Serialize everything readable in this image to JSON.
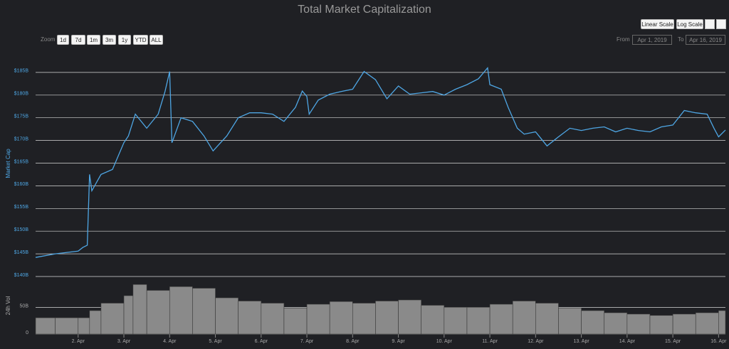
{
  "title": "Total Market Capitalization",
  "controls": {
    "zoom_label": "Zoom",
    "zoom_buttons": [
      "1d",
      "7d",
      "1m",
      "3m",
      "1y",
      "YTD",
      "ALL"
    ],
    "scale_buttons": [
      "Linear Scale",
      "Log Scale"
    ],
    "from_label": "From",
    "from_value": "Apr 1, 2019",
    "to_label": "To",
    "to_value": "Apr 16, 2019"
  },
  "chart_data": [
    {
      "type": "line",
      "ylabel": "Market Cap",
      "color": "#4ea6e4",
      "grid": true,
      "x": [
        1.07,
        1.5,
        2.0,
        2.1,
        2.2,
        2.25,
        2.3,
        2.5,
        2.75,
        3.0,
        3.1,
        3.25,
        3.5,
        3.75,
        3.9,
        4.0,
        4.05,
        4.25,
        4.5,
        4.75,
        4.95,
        5.25,
        5.5,
        5.75,
        6.0,
        6.25,
        6.5,
        6.75,
        6.9,
        7.0,
        7.05,
        7.25,
        7.5,
        7.75,
        8.0,
        8.25,
        8.5,
        8.75,
        9.0,
        9.25,
        9.5,
        9.75,
        10.0,
        10.25,
        10.5,
        10.75,
        10.95,
        11.0,
        11.25,
        11.4,
        11.6,
        11.75,
        12.0,
        12.25,
        12.5,
        12.75,
        13.0,
        13.25,
        13.5,
        13.75,
        14.0,
        14.25,
        14.5,
        14.75,
        15.0,
        15.25,
        15.5,
        15.75,
        15.9,
        16.0,
        16.15
      ],
      "values": [
        144.2,
        145,
        145.6,
        146.4,
        146.9,
        162.5,
        158.9,
        162.5,
        163.6,
        169.5,
        171,
        175.8,
        172.7,
        175.8,
        180.8,
        185.2,
        169.5,
        175,
        174.2,
        171,
        167.7,
        171,
        175,
        176.1,
        176.1,
        175.8,
        174.2,
        177.3,
        180.9,
        179.7,
        175.8,
        178.9,
        180.2,
        180.8,
        181.3,
        185.2,
        183.4,
        179.2,
        182,
        180.2,
        180.5,
        180.8,
        180,
        181.3,
        182.3,
        183.6,
        186,
        182.3,
        181.3,
        177.3,
        172.7,
        171.4,
        171.9,
        168.8,
        170.8,
        172.7,
        172.2,
        172.7,
        173,
        171.9,
        172.7,
        172.2,
        171.9,
        173,
        173.4,
        176.6,
        176.1,
        175.8,
        172.7,
        170.8,
        172.3
      ],
      "xlim": [
        1.07,
        16.15
      ],
      "xticks": [
        {
          "value": 2,
          "label": "2. Apr"
        },
        {
          "value": 3,
          "label": "3. Apr"
        },
        {
          "value": 4,
          "label": "4. Apr"
        },
        {
          "value": 5,
          "label": "5. Apr"
        },
        {
          "value": 6,
          "label": "6. Apr"
        },
        {
          "value": 7,
          "label": "7. Apr"
        },
        {
          "value": 8,
          "label": "8. Apr"
        },
        {
          "value": 9,
          "label": "9. Apr"
        },
        {
          "value": 10,
          "label": "10. Apr"
        },
        {
          "value": 11,
          "label": "11. Apr"
        },
        {
          "value": 12,
          "label": "12. Apr"
        },
        {
          "value": 13,
          "label": "13. Apr"
        },
        {
          "value": 14,
          "label": "14. Apr"
        },
        {
          "value": 15,
          "label": "15. Apr"
        },
        {
          "value": 16,
          "label": "16. Apr"
        }
      ],
      "ylim": [
        140,
        190
      ],
      "yticks": [
        {
          "value": 140,
          "label": "$140B"
        },
        {
          "value": 145,
          "label": "$145B"
        },
        {
          "value": 150,
          "label": "$150B"
        },
        {
          "value": 155,
          "label": "$155B"
        },
        {
          "value": 160,
          "label": "$160B"
        },
        {
          "value": 165,
          "label": "$165B"
        },
        {
          "value": 170,
          "label": "$170B"
        },
        {
          "value": 175,
          "label": "$175B"
        },
        {
          "value": 180,
          "label": "$180B"
        },
        {
          "value": 185,
          "label": "$185B"
        }
      ]
    },
    {
      "type": "bar",
      "ylabel": "24h Vol",
      "color": "#8a8a8a",
      "grid": true,
      "x": [
        1.07,
        1.5,
        2.0,
        2.25,
        2.5,
        3.0,
        3.2,
        3.5,
        4.0,
        4.5,
        5.0,
        5.5,
        6.0,
        6.5,
        7.0,
        7.5,
        8.0,
        8.5,
        9.0,
        9.5,
        10.0,
        10.5,
        11.0,
        11.5,
        12.0,
        12.5,
        13.0,
        13.5,
        14.0,
        14.5,
        15.0,
        15.5,
        16.0
      ],
      "values": [
        30.6,
        30.6,
        30.6,
        44,
        58,
        72,
        93,
        82,
        89,
        86,
        68,
        62,
        58,
        49,
        56,
        61,
        58,
        62,
        64,
        54,
        50,
        50,
        56,
        62,
        58,
        49,
        44,
        40,
        37.5,
        35,
        37.5,
        40,
        44
      ],
      "xlim": [
        1.07,
        16.15
      ],
      "ylim": [
        0,
        104
      ],
      "yticks": [
        0,
        {
          "value": 50,
          "label": "50B"
        }
      ]
    }
  ]
}
